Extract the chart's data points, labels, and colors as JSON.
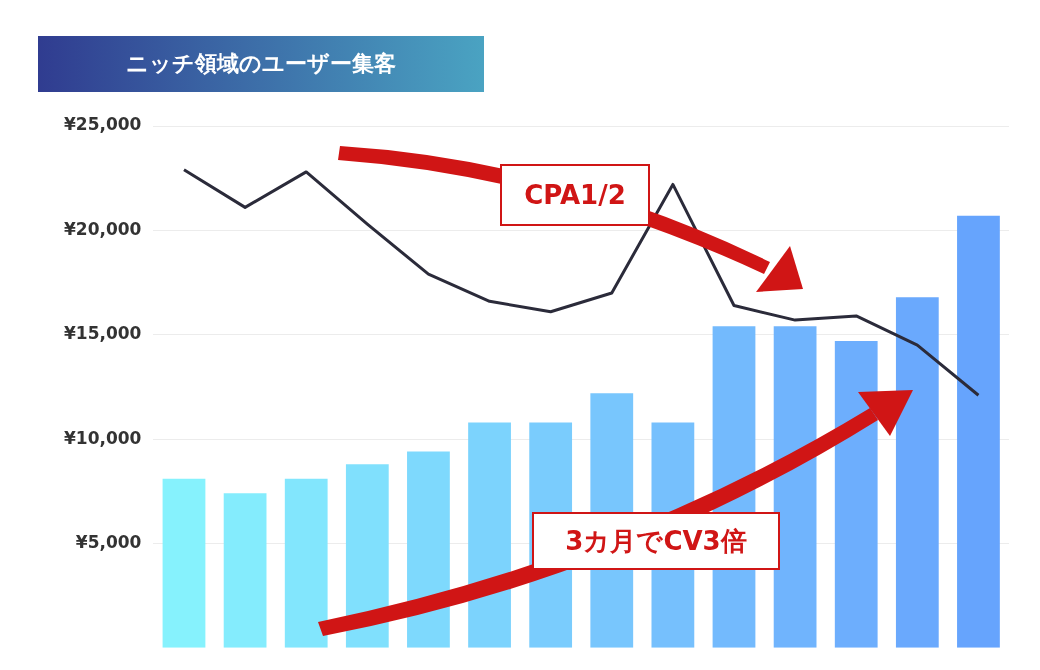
{
  "chart_data": {
    "type": "bar",
    "title": "ニッチ領域のユーザー集客",
    "categories": [
      null,
      null,
      null,
      null,
      null,
      null,
      null,
      null,
      null,
      null,
      null,
      null,
      null,
      null
    ],
    "series": [
      {
        "colors": [
          "#86f2fd",
          "#84ecfd",
          "#82e6fd",
          "#80e0fd",
          "#7ed9fd",
          "#7cd3fd",
          "#7accfd",
          "#78c6fd",
          "#76c0fd",
          "#73bafd",
          "#70b4fd",
          "#6daefd",
          "#6aa9fd",
          "#66a4fd"
        ],
        "values": [
          8100,
          7400,
          8100,
          8800,
          9400,
          10800,
          10800,
          12200,
          10800,
          15400,
          15400,
          14700,
          16800,
          20700
        ]
      },
      {
        "type": "line",
        "color": "#2b2b3a",
        "values": [
          22900,
          21100,
          22800,
          20300,
          17900,
          16600,
          16100,
          17000,
          22200,
          16400,
          15700,
          15900,
          14500,
          12100
        ]
      }
    ],
    "ylim": [
      0,
      25000
    ],
    "yticks": [
      {
        "value": 5000,
        "label": "¥5,000"
      },
      {
        "value": 10000,
        "label": "¥10,000"
      },
      {
        "value": 15000,
        "label": "¥15,000"
      },
      {
        "value": 20000,
        "label": "¥20,000"
      },
      {
        "value": 25000,
        "label": "¥25,000"
      }
    ],
    "grid": "y",
    "legend": false,
    "marker": "none",
    "line_style": "solid",
    "annotations": [
      "CPA1/2",
      "3カ月でCV3倍"
    ]
  }
}
